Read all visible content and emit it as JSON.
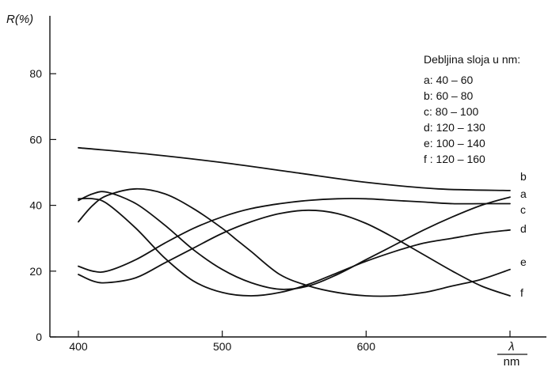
{
  "chart_data": {
    "type": "line",
    "ylabel": "R(%)",
    "xlabel_top": "λ",
    "xlabel_bottom": "nm",
    "xlim": [
      400,
      700
    ],
    "ylim": [
      0,
      100
    ],
    "x_ticks": [
      400,
      500,
      600
    ],
    "y_ticks": [
      0,
      20,
      40,
      60,
      80
    ],
    "grid": false,
    "legend": {
      "title": "Debljina sloja u nm:",
      "placement": "top-right",
      "entries": [
        "a:   40 – 60",
        "b:   60 – 80",
        "c:   80 – 100",
        "d: 120 – 130",
        "e: 100 – 140",
        "f : 120 – 160"
      ]
    },
    "series": [
      {
        "name": "a",
        "x": [
          400,
          410,
          420,
          440,
          460,
          480,
          500,
          520,
          540,
          560,
          580,
          600,
          620,
          640,
          660,
          680,
          700
        ],
        "y": [
          41.5,
          43.5,
          44,
          40.5,
          34,
          26.5,
          20.5,
          16.5,
          14.5,
          15.5,
          19,
          23.5,
          28,
          32.5,
          36.5,
          40,
          42.5
        ]
      },
      {
        "name": "b",
        "x": [
          400,
          450,
          500,
          550,
          600,
          650,
          700
        ],
        "y": [
          57.5,
          55.5,
          53,
          50,
          47,
          45,
          44.5
        ]
      },
      {
        "name": "c",
        "x": [
          400,
          410,
          420,
          440,
          460,
          480,
          500,
          520,
          540,
          560,
          580,
          600,
          620,
          640,
          660,
          680,
          700
        ],
        "y": [
          21.5,
          20,
          20,
          23.5,
          28.5,
          33,
          36.5,
          39,
          40.5,
          41.5,
          42,
          42,
          41.5,
          41,
          40.5,
          40.5,
          40.5
        ]
      },
      {
        "name": "d",
        "x": [
          400,
          410,
          420,
          440,
          460,
          480,
          500,
          520,
          540,
          560,
          580,
          600,
          620,
          640,
          660,
          680,
          700
        ],
        "y": [
          19,
          17,
          16.5,
          18,
          22.5,
          27,
          31.5,
          35,
          37.5,
          38.5,
          37.5,
          34.5,
          30,
          25,
          20,
          15.5,
          12.5
        ]
      },
      {
        "name": "e",
        "x": [
          400,
          410,
          420,
          440,
          460,
          480,
          500,
          510,
          520,
          540,
          560,
          580,
          600,
          620,
          640,
          660,
          680,
          700
        ],
        "y": [
          35,
          40,
          43,
          45,
          43.5,
          39,
          33,
          29.5,
          26,
          19,
          15.5,
          13.5,
          12.5,
          12.5,
          13.5,
          15.5,
          17.5,
          20.5
        ]
      },
      {
        "name": "f",
        "x": [
          400,
          410,
          420,
          440,
          460,
          480,
          500,
          520,
          540,
          560,
          580,
          600,
          620,
          640,
          660,
          680,
          700
        ],
        "y": [
          42,
          42,
          40.5,
          33,
          24,
          17,
          13.5,
          12.5,
          13.5,
          16,
          19.5,
          23,
          26,
          28.5,
          30,
          31.5,
          32.5
        ]
      }
    ]
  }
}
